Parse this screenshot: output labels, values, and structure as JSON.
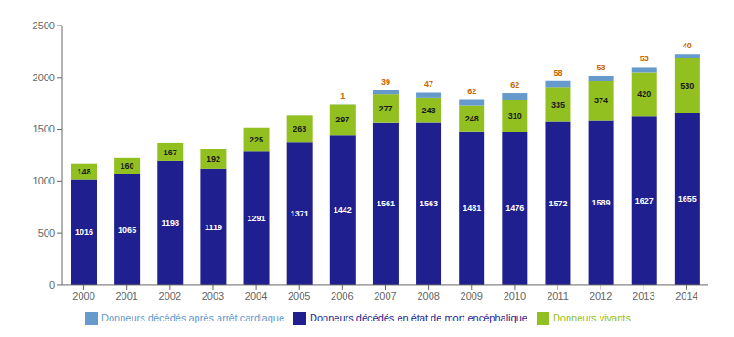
{
  "chart_data": {
    "type": "bar",
    "stacked": true,
    "data_labels": true,
    "grid": false,
    "legend": "bottom",
    "categories": [
      "2000",
      "2001",
      "2002",
      "2003",
      "2004",
      "2005",
      "2006",
      "2007",
      "2008",
      "2009",
      "2010",
      "2011",
      "2012",
      "2013",
      "2014"
    ],
    "series": [
      {
        "name": "Donneurs décédés en état de mort encéphalique",
        "color": "#1f1f8f",
        "values": [
          1016,
          1065,
          1198,
          1119,
          1291,
          1371,
          1442,
          1561,
          1563,
          1481,
          1476,
          1572,
          1589,
          1627,
          1655
        ]
      },
      {
        "name": "Donneurs vivants",
        "color": "#92c020",
        "values": [
          148,
          160,
          167,
          192,
          225,
          263,
          297,
          277,
          243,
          248,
          310,
          335,
          374,
          420,
          530
        ]
      },
      {
        "name": "Donneurs décédés après arrêt cardiaque",
        "color": "#6699cc",
        "values": [
          0,
          0,
          0,
          0,
          0,
          0,
          1,
          39,
          47,
          62,
          62,
          58,
          53,
          53,
          40
        ]
      }
    ],
    "ylim": [
      0,
      2500
    ],
    "yticks": [
      0,
      500,
      1000,
      1500,
      2000,
      2500
    ]
  }
}
